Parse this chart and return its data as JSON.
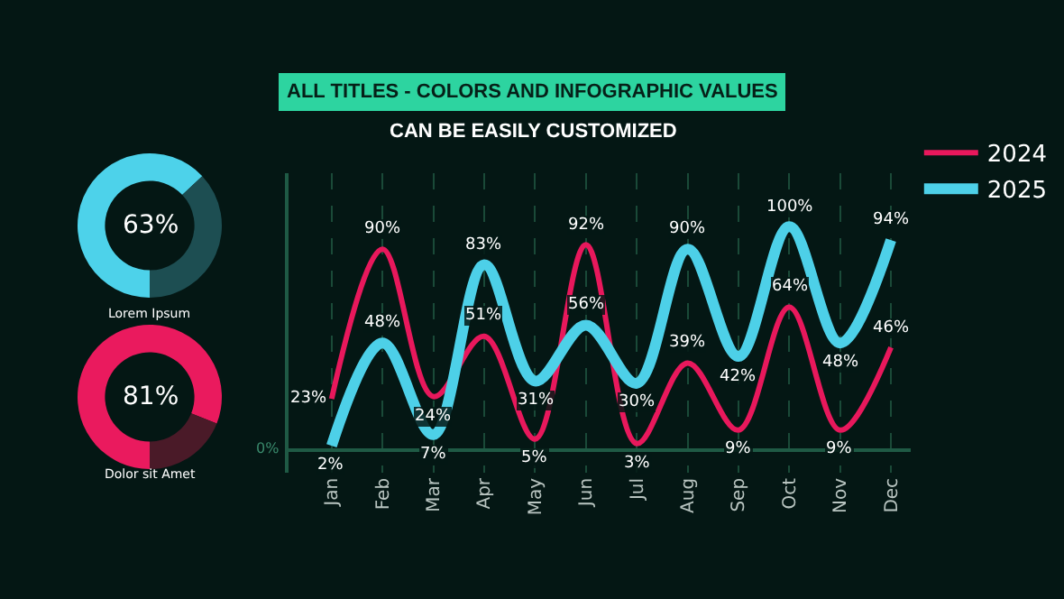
{
  "chart_data": [
    {
      "type": "line",
      "title": "ALL TITLES - COLORS AND INFOGRAPHIC VALUES",
      "subtitle": "CAN BE EASILY CUSTOMIZED",
      "categories": [
        "Jan",
        "Feb",
        "Mar",
        "Apr",
        "May",
        "Jun",
        "Jul",
        "Aug",
        "Sep",
        "Oct",
        "Nov",
        "Dec"
      ],
      "series": [
        {
          "name": "2024",
          "color": "#e8185c",
          "values": [
            23,
            90,
            24,
            51,
            5,
            92,
            3,
            39,
            9,
            64,
            9,
            46
          ],
          "value_labels": [
            "23%",
            "90%",
            "24%",
            "51%",
            "5%",
            "92%",
            "3%",
            "39%",
            "9%",
            "64%",
            "9%",
            "46%"
          ]
        },
        {
          "name": "2025",
          "color": "#4dd0e8",
          "values": [
            2,
            48,
            7,
            83,
            31,
            56,
            30,
            90,
            42,
            100,
            48,
            94
          ],
          "value_labels": [
            "2%",
            "48%",
            "7%",
            "83%",
            "31%",
            "56%",
            "30%",
            "90%",
            "42%",
            "100%",
            "48%",
            "94%"
          ]
        }
      ],
      "ylim": [
        -10,
        124
      ],
      "annotations": [
        "0%"
      ],
      "grid": "x",
      "legend": "top right",
      "marker": "none",
      "line_style": "solid"
    },
    {
      "type": "donut",
      "title": "Lorem Ipsum",
      "categories": [
        null,
        null
      ],
      "values": [
        63,
        37
      ],
      "colors": [
        "#4dd2ea",
        "#1d4e52"
      ],
      "annotations": [
        "63%"
      ]
    },
    {
      "type": "donut",
      "title": "Dolor sit Amet",
      "categories": [
        null,
        null
      ],
      "values": [
        81,
        19
      ],
      "colors": [
        "#ea1a5e",
        "#4a1a28"
      ],
      "annotations": [
        "81%"
      ]
    }
  ]
}
